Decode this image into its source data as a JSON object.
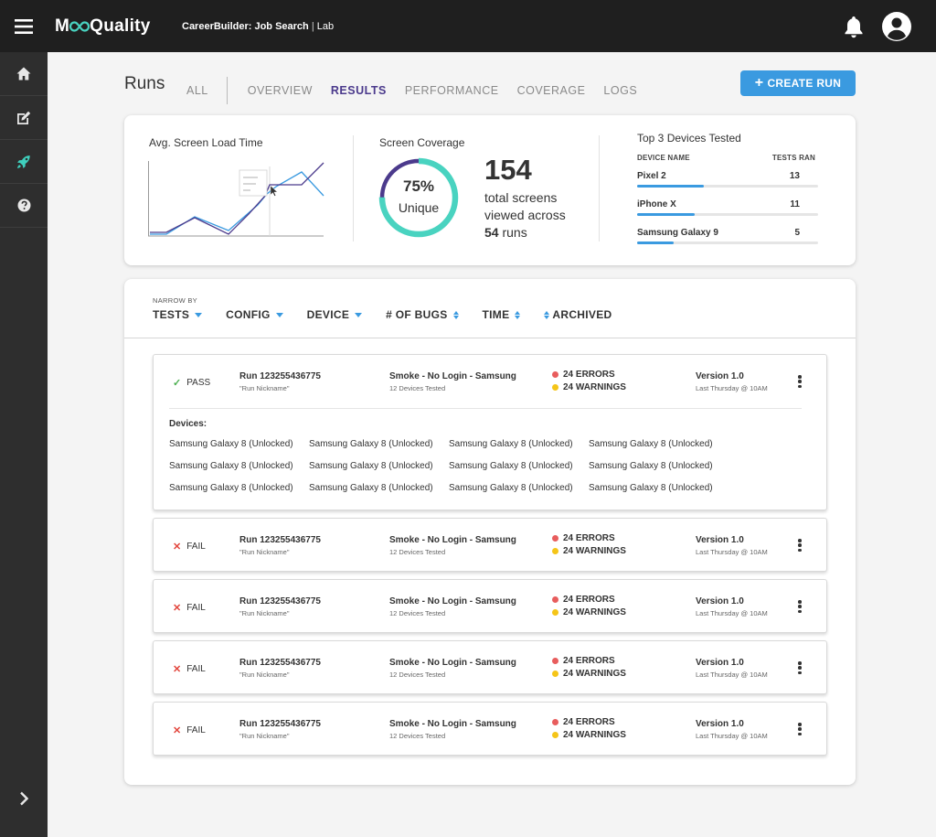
{
  "header": {
    "logo_part1": "M",
    "logo_part2": "Quality",
    "app_name": "CareerBuilder: Job Search",
    "separator": "|",
    "env": "Lab"
  },
  "sidebar": {
    "items": [
      {
        "icon": "home-icon"
      },
      {
        "icon": "edit-icon"
      },
      {
        "icon": "rocket-icon",
        "active": true
      },
      {
        "icon": "help-icon"
      }
    ],
    "expand_icon": "chevron-right-icon"
  },
  "page": {
    "title": "Runs",
    "tabs": [
      "ALL",
      "OVERVIEW",
      "RESULTS",
      "PERFORMANCE",
      "COVERAGE",
      "LOGS"
    ],
    "active_tab": "RESULTS",
    "create_button": "CREATE RUN",
    "create_plus": "+"
  },
  "stats": {
    "load_time_label": "Avg. Screen Load Time",
    "coverage_label": "Screen Coverage",
    "coverage_pct": "75%",
    "coverage_value": 0.75,
    "coverage_unique": "Unique",
    "total_screens": "154",
    "screens_line1": "total screens",
    "screens_line2": "viewed across",
    "runs_count": "54",
    "runs_word": "runs",
    "top_devices_label": "Top 3 Devices Tested",
    "device_col": "DEVICE NAME",
    "tests_col": "TESTS RAN",
    "devices": [
      {
        "name": "Pixel 2",
        "count": "13",
        "fraction": 0.37
      },
      {
        "name": "iPhone X",
        "count": "11",
        "fraction": 0.32
      },
      {
        "name": "Samsung Galaxy 9",
        "count": "5",
        "fraction": 0.2
      }
    ]
  },
  "filters": {
    "narrow_by": "NARROW BY",
    "items": [
      "TESTS",
      "CONFIG",
      "DEVICE",
      "# OF BUGS",
      "TIME",
      "ARCHIVED"
    ]
  },
  "runs": [
    {
      "status": "PASS",
      "mark": "✓",
      "id": "Run 123255436775",
      "nickname": "\"Run Nickname\"",
      "suite": "Smoke - No Login - Samsung",
      "devices_tested": "12 Devices Tested",
      "errors": "24 ERRORS",
      "warnings": "24 WARNINGS",
      "version": "Version 1.0",
      "when": "Last Thursday @ 10AM"
    },
    {
      "status": "FAIL",
      "mark": "✕",
      "id": "Run 123255436775",
      "nickname": "\"Run Nickname\"",
      "suite": "Smoke - No Login - Samsung",
      "devices_tested": "12 Devices Tested",
      "errors": "24 ERRORS",
      "warnings": "24 WARNINGS",
      "version": "Version 1.0",
      "when": "Last Thursday @ 10AM"
    },
    {
      "status": "FAIL",
      "mark": "✕",
      "id": "Run 123255436775",
      "nickname": "\"Run Nickname\"",
      "suite": "Smoke - No Login - Samsung",
      "devices_tested": "12 Devices Tested",
      "errors": "24 ERRORS",
      "warnings": "24 WARNINGS",
      "version": "Version 1.0",
      "when": "Last Thursday @ 10AM"
    },
    {
      "status": "FAIL",
      "mark": "✕",
      "id": "Run 123255436775",
      "nickname": "\"Run Nickname\"",
      "suite": "Smoke - No Login - Samsung",
      "devices_tested": "12 Devices Tested",
      "errors": "24 ERRORS",
      "warnings": "24 WARNINGS",
      "version": "Version 1.0",
      "when": "Last Thursday @ 10AM"
    },
    {
      "status": "FAIL",
      "mark": "✕",
      "id": "Run 123255436775",
      "nickname": "\"Run Nickname\"",
      "suite": "Smoke - No Login - Samsung",
      "devices_tested": "12 Devices Tested",
      "errors": "24 ERRORS",
      "warnings": "24 WARNINGS",
      "version": "Version 1.0",
      "when": "Last Thursday @ 10AM"
    }
  ],
  "expanded": {
    "devices_label": "Devices:",
    "devices": [
      "Samsung Galaxy 8 (Unlocked)",
      "Samsung Galaxy 8 (Unlocked)",
      "Samsung Galaxy 8 (Unlocked)",
      "Samsung Galaxy 8 (Unlocked)",
      "Samsung Galaxy 8 (Unlocked)",
      "Samsung Galaxy 8 (Unlocked)",
      "Samsung Galaxy 8 (Unlocked)",
      "Samsung Galaxy 8 (Unlocked)",
      "Samsung Galaxy 8 (Unlocked)",
      "Samsung Galaxy 8 (Unlocked)",
      "Samsung Galaxy 8 (Unlocked)",
      "Samsung Galaxy 8 (Unlocked)"
    ]
  },
  "colors": {
    "accent_blue": "#3a9ae0",
    "active_purple": "#4b3a8c",
    "teal": "#49d3c0",
    "pass_green": "#4caf50",
    "fail_red": "#e2453c",
    "error_dot": "#e85d5d",
    "warning_dot": "#f5c518"
  }
}
